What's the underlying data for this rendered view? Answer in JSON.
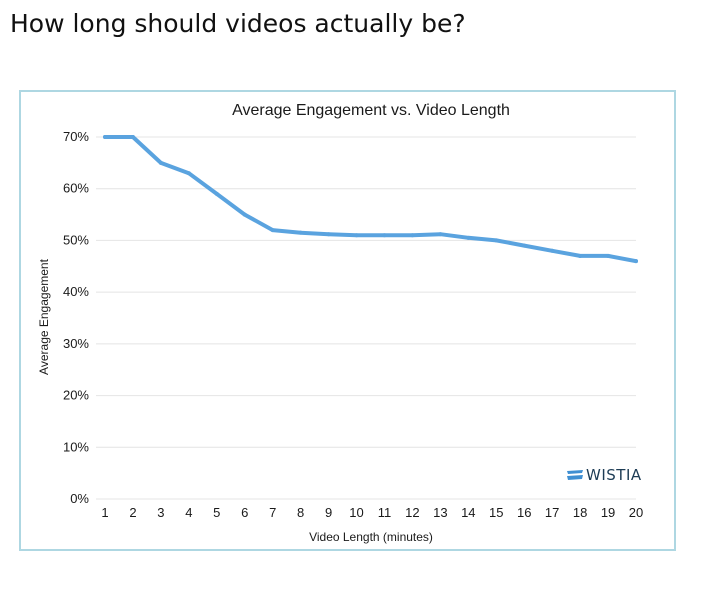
{
  "page": {
    "heading": "How long should videos actually be?"
  },
  "colors": {
    "line": "#5aa3df",
    "grid": "#e4e4e4",
    "frame_border": "#aed7e2",
    "brand_mark": "#3f8fd2",
    "brand_text": "#1d3c55"
  },
  "watermark": {
    "text": "WISTIA",
    "icon": "wistia-logo-icon"
  },
  "chart_data": {
    "type": "line",
    "title": "Average Engagement vs. Video Length",
    "xlabel": "Video Length (minutes)",
    "ylabel": "Average Engagement",
    "x": [
      1,
      2,
      3,
      4,
      5,
      6,
      7,
      8,
      9,
      10,
      11,
      12,
      13,
      14,
      15,
      16,
      17,
      18,
      19,
      20
    ],
    "x_tick_labels": [
      "1",
      "2",
      "3",
      "4",
      "5",
      "6",
      "7",
      "8",
      "9",
      "10",
      "11",
      "12",
      "13",
      "14",
      "15",
      "16",
      "17",
      "18",
      "19",
      "20"
    ],
    "series": [
      {
        "values": [
          70,
          70,
          65,
          63,
          59,
          55,
          52,
          51.5,
          51.2,
          51,
          51,
          51,
          51.2,
          50.5,
          50,
          49,
          48,
          47,
          47,
          46
        ]
      }
    ],
    "y_ticks": [
      0,
      10,
      20,
      30,
      40,
      50,
      60,
      70
    ],
    "y_tick_labels": [
      "0%",
      "10%",
      "20%",
      "30%",
      "40%",
      "50%",
      "60%",
      "70%"
    ],
    "xlim": [
      1,
      20
    ],
    "ylim": [
      0,
      70
    ],
    "grid": true,
    "legend": "none"
  }
}
